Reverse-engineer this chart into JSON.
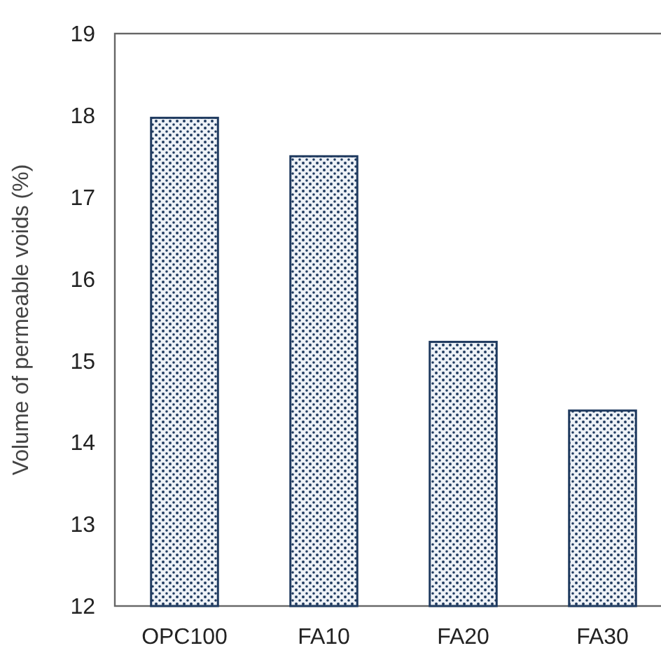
{
  "chart_data": {
    "type": "bar",
    "ylabel": "Volume of permeable voids (%)",
    "categories": [
      "OPC100",
      "FA10",
      "FA20",
      "FA30"
    ],
    "values": [
      17.97,
      17.5,
      15.23,
      14.39
    ],
    "color": "#1f3a5f",
    "ylim": [
      12,
      19
    ],
    "yticks": [
      12,
      13,
      14,
      15,
      16,
      17,
      18,
      19
    ],
    "grid": false
  }
}
